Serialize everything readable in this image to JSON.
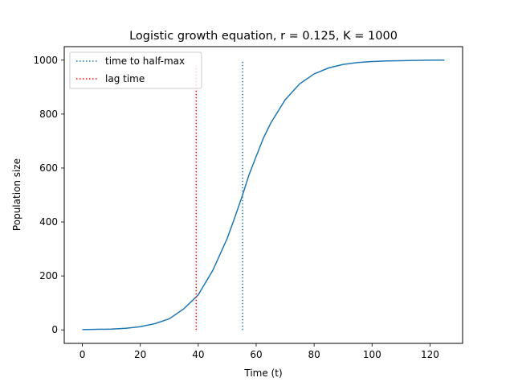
{
  "chart_data": {
    "type": "line",
    "title": "Logistic growth equation, r = 0.125, K = 1000",
    "xlabel": "Time (t)",
    "ylabel": "Population size",
    "xlim": [
      -6.25,
      131.25
    ],
    "ylim": [
      -50,
      1050
    ],
    "xticks": [
      0,
      20,
      40,
      60,
      80,
      100,
      120
    ],
    "yticks": [
      0,
      200,
      400,
      600,
      800,
      1000
    ],
    "grid": false,
    "legend_position": "top-left",
    "series": [
      {
        "kind": "line",
        "color": "#1f77b4",
        "style": "solid",
        "x": [
          0,
          5,
          10,
          15,
          20,
          25,
          30,
          35,
          40,
          45,
          50,
          52.5,
          55.3,
          57.5,
          60,
          62.5,
          65,
          70,
          75,
          80,
          85,
          90,
          95,
          100,
          105,
          110,
          115,
          120,
          125
        ],
        "y": [
          1,
          2,
          3,
          6,
          12,
          23,
          41,
          78,
          130,
          220,
          339,
          413,
          500,
          574,
          643,
          711,
          766,
          853,
          912,
          949,
          971,
          984,
          991,
          995,
          997,
          998,
          999,
          1000,
          1000
        ]
      },
      {
        "kind": "vline",
        "name": "time to half-max",
        "color": "#1f77b4",
        "style": "dotted",
        "x": 55.3,
        "y_range": [
          0,
          1000
        ]
      },
      {
        "kind": "vline",
        "name": "lag time",
        "color": "#ff0000",
        "style": "dotted",
        "x": 39.3,
        "y_range": [
          0,
          980
        ]
      }
    ]
  }
}
